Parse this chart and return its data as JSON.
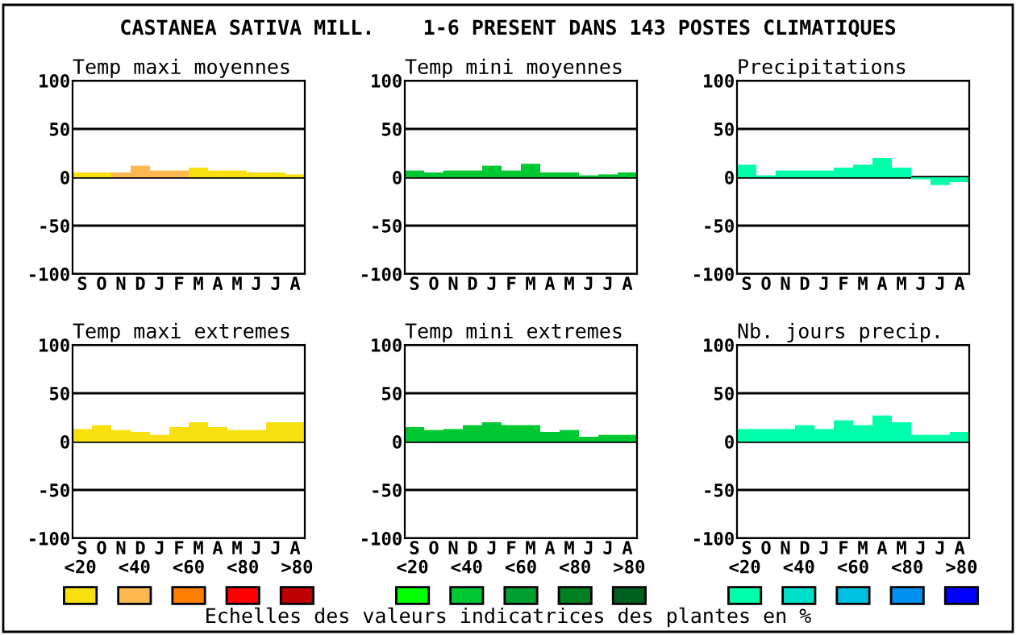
{
  "chart_data": [
    {
      "type": "bar",
      "title": "Temp maxi moyennes",
      "categories": [
        "S",
        "O",
        "N",
        "D",
        "J",
        "F",
        "M",
        "A",
        "M",
        "J",
        "J",
        "A"
      ],
      "values": [
        5,
        5,
        5,
        12,
        7,
        7,
        10,
        7,
        7,
        5,
        5,
        3
      ],
      "colors": [
        "#f8e010",
        "#f8e010",
        "#ffb850",
        "#ffb850",
        "#ffb850",
        "#ffb850",
        "#f8e010",
        "#f8e010",
        "#f8e010",
        "#f8e010",
        "#f8e010",
        "#f8e010"
      ],
      "ylim": [
        -100,
        100
      ],
      "yticks": [
        -100,
        -50,
        0,
        50,
        100
      ],
      "grid": "y"
    },
    {
      "type": "bar",
      "title": "Temp mini moyennes",
      "categories": [
        "S",
        "O",
        "N",
        "D",
        "J",
        "F",
        "M",
        "A",
        "M",
        "J",
        "J",
        "A"
      ],
      "values": [
        7,
        5,
        7,
        7,
        12,
        7,
        14,
        5,
        5,
        2,
        3,
        5
      ],
      "color": "#00c832",
      "ylim": [
        -100,
        100
      ],
      "yticks": [
        -100,
        -50,
        0,
        50,
        100
      ],
      "grid": "y"
    },
    {
      "type": "bar",
      "title": "Precipitations",
      "categories": [
        "S",
        "O",
        "N",
        "D",
        "J",
        "F",
        "M",
        "A",
        "M",
        "J",
        "J",
        "A"
      ],
      "values": [
        13,
        2,
        7,
        7,
        7,
        10,
        13,
        20,
        10,
        -2,
        -8,
        -5
      ],
      "color": "#00ffaa",
      "ylim": [
        -100,
        100
      ],
      "yticks": [
        -100,
        -50,
        0,
        50,
        100
      ],
      "grid": "y"
    },
    {
      "type": "bar",
      "title": "Temp maxi extremes",
      "categories": [
        "S",
        "O",
        "N",
        "D",
        "J",
        "F",
        "M",
        "A",
        "M",
        "J",
        "J",
        "A"
      ],
      "values": [
        13,
        17,
        12,
        10,
        7,
        15,
        20,
        15,
        12,
        12,
        20,
        20
      ],
      "color": "#f8e010",
      "ylim": [
        -100,
        100
      ],
      "yticks": [
        -100,
        -50,
        0,
        50,
        100
      ],
      "grid": "y"
    },
    {
      "type": "bar",
      "title": "Temp mini extremes",
      "categories": [
        "S",
        "O",
        "N",
        "D",
        "J",
        "F",
        "M",
        "A",
        "M",
        "J",
        "J",
        "A"
      ],
      "values": [
        15,
        12,
        13,
        17,
        20,
        17,
        17,
        10,
        12,
        5,
        7,
        7
      ],
      "color": "#00c832",
      "ylim": [
        -100,
        100
      ],
      "yticks": [
        -100,
        -50,
        0,
        50,
        100
      ],
      "grid": "y"
    },
    {
      "type": "bar",
      "title": "Nb. jours precip.",
      "categories": [
        "S",
        "O",
        "N",
        "D",
        "J",
        "F",
        "M",
        "A",
        "M",
        "J",
        "J",
        "A"
      ],
      "values": [
        13,
        13,
        13,
        17,
        13,
        22,
        17,
        27,
        20,
        7,
        7,
        10
      ],
      "color": "#00ffaa",
      "ylim": [
        -100,
        100
      ],
      "yticks": [
        -100,
        -50,
        0,
        50,
        100
      ],
      "grid": "y"
    },
    {
      "type": "other",
      "title": "CASTANEA SATIVA MILL.    1-6 PRESENT DANS 143 POSTES CLIMATIQUES",
      "categories": [
        "<20",
        "<40",
        "<60",
        "<80",
        ">80"
      ],
      "annotations": [
        "Echelles des valeurs indicatrices des plantes en %"
      ]
    }
  ]
}
